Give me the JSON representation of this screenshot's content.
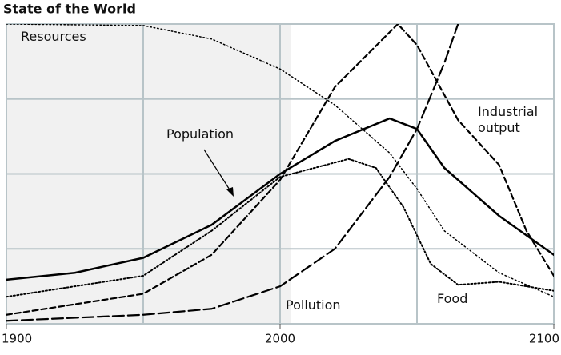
{
  "chart_data": {
    "type": "line",
    "title": "State of the World",
    "xlim": [
      1900,
      2100
    ],
    "xticks": [
      1900,
      2000,
      2100
    ],
    "xgrid": [
      1950,
      2000,
      2050
    ],
    "ylim": [
      0,
      100
    ],
    "yticks": [
      25,
      50,
      75
    ],
    "y_tick_labels": false,
    "grid": true,
    "shaded_until": 2004,
    "shade_color": "#f1f1f1",
    "series": [
      {
        "name": "Resources",
        "color": "#000000",
        "dash": "1.5 3",
        "width": 1.5,
        "x": [
          1900,
          1950,
          1975,
          2000,
          2020,
          2040,
          2050,
          2060,
          2080,
          2100
        ],
        "values": [
          100,
          99.5,
          95,
          85,
          73,
          57,
          45,
          31,
          17,
          9
        ]
      },
      {
        "name": "Population",
        "color": "#000000",
        "dash": "",
        "width": 2.5,
        "x": [
          1900,
          1925,
          1950,
          1975,
          2000,
          2020,
          2040,
          2050,
          2060,
          2080,
          2100
        ],
        "values": [
          14.7,
          17,
          22,
          33,
          50,
          61,
          68.5,
          65,
          52,
          36,
          23
        ]
      },
      {
        "name": "Food",
        "color": "#000000",
        "dash": "2 2.5",
        "width": 2,
        "x": [
          1900,
          1950,
          1975,
          2000,
          2025,
          2035,
          2045,
          2055,
          2065,
          2080,
          2100
        ],
        "values": [
          9,
          16,
          31,
          49,
          55,
          52,
          39,
          20,
          13,
          14,
          11
        ]
      },
      {
        "name": "Industrial output",
        "color": "#000000",
        "dash": "7 4",
        "width": 2.2,
        "x": [
          1900,
          1950,
          1975,
          2000,
          2020,
          2043,
          2050,
          2065,
          2080,
          2090,
          2100
        ],
        "values": [
          3,
          10,
          23,
          48,
          79,
          100,
          93,
          68,
          53,
          31,
          16
        ]
      },
      {
        "name": "Pollution",
        "color": "#000000",
        "dash": "14 5",
        "width": 2.2,
        "x": [
          1900,
          1950,
          1975,
          2000,
          2020,
          2040,
          2050,
          2060,
          2065
        ],
        "values": [
          1,
          3,
          5,
          12.5,
          25,
          49,
          65,
          87,
          100
        ]
      }
    ]
  }
}
